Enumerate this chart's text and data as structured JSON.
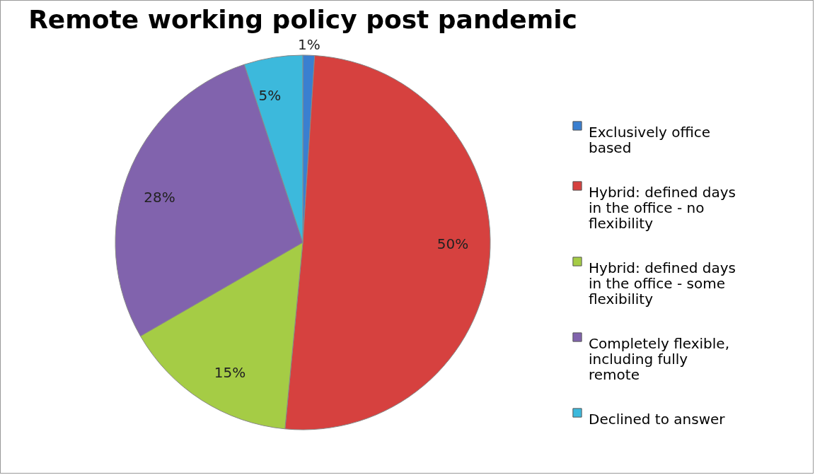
{
  "chart_data": {
    "type": "pie",
    "title": "Remote working policy post pandemic",
    "categories": [
      "Exclusively office based",
      "Hybrid: defined days in the office - no flexibility",
      "Hybrid: defined days in the office - some flexibility",
      "Completely flexible, including fully remote",
      "Declined to answer"
    ],
    "values": [
      1,
      50,
      15,
      28,
      5
    ],
    "colors": [
      "#3a7fd0",
      "#d6413f",
      "#a5cc45",
      "#8163ad",
      "#3cb9dc"
    ],
    "value_labels": [
      "1%",
      "50%",
      "15%",
      "28%",
      "5%"
    ],
    "legend": "right"
  }
}
